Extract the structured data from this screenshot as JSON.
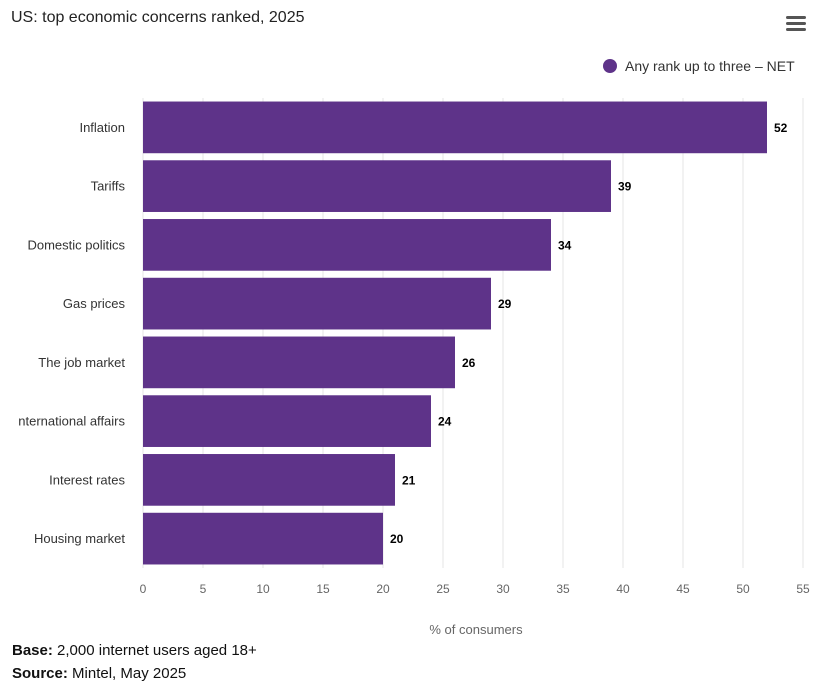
{
  "header": {
    "title": "US: top economic concerns ranked, 2025",
    "menu_icon": "hamburger-menu-icon"
  },
  "colors": {
    "bar": "#5e3389",
    "grid": "#e6e6e6",
    "axis_text": "#666666",
    "category_text": "#333333",
    "value_text": "#000000"
  },
  "chart_data": {
    "type": "bar",
    "orientation": "horizontal",
    "title": "US: top economic concerns ranked, 2025",
    "categories": [
      "Inflation",
      "Tariffs",
      "Domestic politics",
      "Gas prices",
      "The job market",
      "nternational affairs",
      "Interest rates",
      "Housing market"
    ],
    "series": [
      {
        "name": "Any rank up to three – NET",
        "values": [
          52,
          39,
          34,
          29,
          26,
          24,
          21,
          20
        ]
      }
    ],
    "xlabel": "% of consumers",
    "ylabel": "",
    "xlim": [
      0,
      55
    ],
    "xticks": [
      0,
      5,
      10,
      15,
      20,
      25,
      30,
      35,
      40,
      45,
      50,
      55
    ],
    "grid": true,
    "legend_position": "top-right",
    "data_labels": true
  },
  "footer": {
    "base_label": "Base:",
    "base_value": "2,000 internet users aged 18+",
    "source_label": "Source:",
    "source_value": "Mintel, May 2025"
  }
}
